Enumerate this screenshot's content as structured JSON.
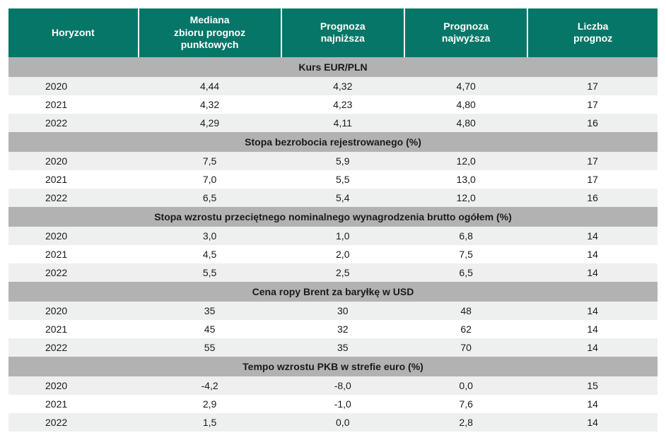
{
  "styles": {
    "header_bg": "#067668",
    "header_fg": "#ffffff",
    "section_bg": "#b2b2b2",
    "zebra_even": "#eef0f0",
    "zebra_odd": "#ffffff",
    "text_color": "#1a1a1a",
    "column_widths_pct": [
      20,
      22,
      19,
      19,
      20
    ]
  },
  "headers": [
    "Horyzont",
    "Mediana\nzbioru prognoz\npunktowych",
    "Prognoza\nnajniższa",
    "Prognoza\nnajwyższa",
    "Liczba\nprognoz"
  ],
  "sections": [
    {
      "title": "Kurs EUR/PLN",
      "rows": [
        [
          "2020",
          "4,44",
          "4,32",
          "4,70",
          "17"
        ],
        [
          "2021",
          "4,32",
          "4,23",
          "4,80",
          "17"
        ],
        [
          "2022",
          "4,29",
          "4,11",
          "4,80",
          "16"
        ]
      ]
    },
    {
      "title": "Stopa bezrobocia rejestrowanego (%)",
      "rows": [
        [
          "2020",
          "7,5",
          "5,9",
          "12,0",
          "17"
        ],
        [
          "2021",
          "7,0",
          "5,5",
          "13,0",
          "17"
        ],
        [
          "2022",
          "6,5",
          "5,4",
          "12,0",
          "16"
        ]
      ]
    },
    {
      "title": "Stopa wzrostu przeciętnego nominalnego wynagrodzenia brutto ogółem (%)",
      "rows": [
        [
          "2020",
          "3,0",
          "1,0",
          "6,8",
          "14"
        ],
        [
          "2021",
          "4,5",
          "2,0",
          "7,5",
          "14"
        ],
        [
          "2022",
          "5,5",
          "2,5",
          "6,5",
          "14"
        ]
      ]
    },
    {
      "title": "Cena ropy Brent za baryłkę w USD",
      "rows": [
        [
          "2020",
          "35",
          "30",
          "48",
          "14"
        ],
        [
          "2021",
          "45",
          "32",
          "62",
          "14"
        ],
        [
          "2022",
          "55",
          "35",
          "70",
          "14"
        ]
      ]
    },
    {
      "title": "Tempo wzrostu PKB w strefie euro (%)",
      "rows": [
        [
          "2020",
          "-4,2",
          "-8,0",
          "0,0",
          "15"
        ],
        [
          "2021",
          "2,9",
          "-1,0",
          "7,6",
          "14"
        ],
        [
          "2022",
          "1,5",
          "0,0",
          "2,8",
          "14"
        ]
      ]
    }
  ]
}
